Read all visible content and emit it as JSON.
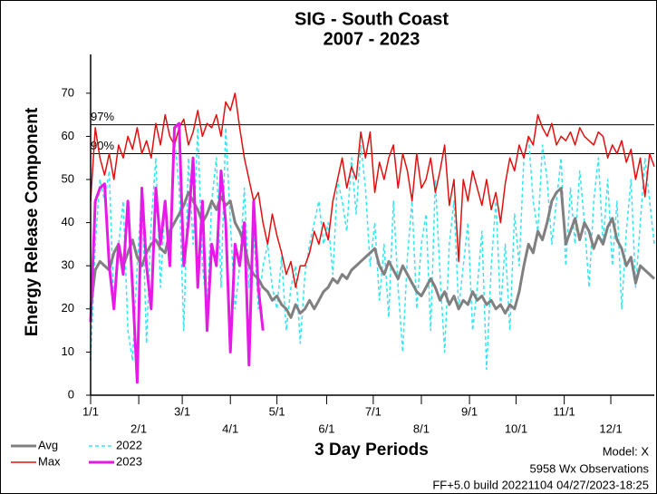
{
  "chart_data": {
    "type": "line",
    "title": "SIG - South Coast",
    "subtitle": "2007 - 2023",
    "y_label": "Energy Release Component",
    "x_label": "3 Day Periods",
    "notes": [
      "Model: X",
      "5958 Wx Observations",
      "FF+5.0 build 20221104 04/27/2023-18:25"
    ],
    "xlim": [
      0,
      121
    ],
    "ylim": [
      0,
      79
    ],
    "yticks": [
      0,
      10,
      20,
      30,
      40,
      50,
      60,
      70
    ],
    "xticks": [
      {
        "value": 0,
        "label": "1/1"
      },
      {
        "value": 10.33,
        "label": "2/1"
      },
      {
        "value": 19.67,
        "label": "3/1"
      },
      {
        "value": 30,
        "label": "4/1"
      },
      {
        "value": 40,
        "label": "5/1"
      },
      {
        "value": 50.67,
        "label": "6/1"
      },
      {
        "value": 60.67,
        "label": "7/1"
      },
      {
        "value": 71,
        "label": "8/1"
      },
      {
        "value": 81.33,
        "label": "9/1"
      },
      {
        "value": 91.33,
        "label": "10/1"
      },
      {
        "value": 101.67,
        "label": "11/1"
      },
      {
        "value": 111.67,
        "label": "12/1"
      }
    ],
    "reference_lines": [
      {
        "value": 62.7,
        "label": "97%"
      },
      {
        "value": 56,
        "label": "90%"
      }
    ],
    "x": [
      0,
      1,
      2,
      3,
      4,
      5,
      6,
      7,
      8,
      9,
      10,
      11,
      12,
      13,
      14,
      15,
      16,
      17,
      18,
      19,
      20,
      21,
      22,
      23,
      24,
      25,
      26,
      27,
      28,
      29,
      30,
      31,
      32,
      33,
      34,
      35,
      36,
      37,
      38,
      39,
      40,
      41,
      42,
      43,
      44,
      45,
      46,
      47,
      48,
      49,
      50,
      51,
      52,
      53,
      54,
      55,
      56,
      57,
      58,
      59,
      60,
      61,
      62,
      63,
      64,
      65,
      66,
      67,
      68,
      69,
      70,
      71,
      72,
      73,
      74,
      75,
      76,
      77,
      78,
      79,
      80,
      81,
      82,
      83,
      84,
      85,
      86,
      87,
      88,
      89,
      90,
      91,
      92,
      93,
      94,
      95,
      96,
      97,
      98,
      99,
      100,
      101,
      102,
      103,
      104,
      105,
      106,
      107,
      108,
      109,
      110,
      111,
      112,
      113,
      114,
      115,
      116,
      117,
      118,
      119,
      120,
      121
    ],
    "series": [
      {
        "name": "2022",
        "color": "#33e6f0",
        "style": "dashed",
        "width": 1.5,
        "values": [
          8,
          35,
          50,
          45,
          52,
          20,
          35,
          45,
          15,
          8,
          30,
          48,
          12,
          40,
          55,
          25,
          45,
          35,
          60,
          48,
          15,
          55,
          35,
          62,
          30,
          20,
          45,
          55,
          25,
          62,
          40,
          20,
          30,
          48,
          25,
          38,
          20,
          30,
          35,
          25,
          20,
          32,
          15,
          25,
          30,
          12,
          28,
          35,
          40,
          45,
          35,
          40,
          28,
          50,
          45,
          38,
          55,
          42,
          58,
          48,
          30,
          40,
          22,
          35,
          18,
          45,
          25,
          10,
          32,
          45,
          20,
          35,
          42,
          15,
          50,
          28,
          10,
          35,
          45,
          20,
          30,
          40,
          15,
          25,
          38,
          6,
          30,
          45,
          20,
          35,
          15,
          42,
          30,
          55,
          60,
          45,
          38,
          58,
          50,
          35,
          45,
          55,
          30,
          48,
          35,
          52,
          40,
          25,
          45,
          55,
          35,
          50,
          30,
          45,
          20,
          38,
          50,
          25,
          40,
          55,
          45,
          35
        ]
      },
      {
        "name": "Avg",
        "color": "#808080",
        "style": "solid",
        "width": 3,
        "values": [
          20,
          29,
          31,
          30,
          29,
          33,
          35,
          30,
          33,
          36,
          32,
          30,
          33,
          35,
          36,
          34,
          33,
          38,
          40,
          42,
          44,
          47,
          45,
          43,
          40,
          42,
          45,
          43,
          46,
          44,
          45,
          40,
          38,
          35,
          30,
          28,
          27,
          25,
          24,
          22,
          23,
          21,
          20,
          18,
          21,
          19,
          20,
          22,
          20,
          22,
          24,
          25,
          27,
          26,
          28,
          27,
          29,
          30,
          31,
          32,
          33,
          34,
          30,
          28,
          31,
          29,
          27,
          30,
          28,
          26,
          24,
          23,
          25,
          27,
          25,
          22,
          24,
          21,
          23,
          20,
          22,
          21,
          24,
          22,
          23,
          21,
          22,
          20,
          21,
          19,
          21,
          20,
          24,
          30,
          35,
          33,
          38,
          36,
          40,
          45,
          47,
          48,
          35,
          38,
          41,
          36,
          40,
          38,
          34,
          37,
          35,
          39,
          41,
          36,
          34,
          30,
          32,
          26,
          30,
          29,
          28,
          27
        ]
      },
      {
        "name": "Max",
        "color": "#e01010",
        "style": "solid",
        "width": 1.5,
        "values": [
          45,
          62,
          55,
          51,
          56,
          50,
          58,
          55,
          60,
          57,
          62,
          56,
          59,
          55,
          63,
          58,
          65,
          60,
          58,
          62,
          64,
          58,
          61,
          66,
          60,
          63,
          62,
          65,
          60,
          68,
          66,
          70,
          62,
          55,
          50,
          45,
          47,
          40,
          35,
          42,
          37,
          33,
          28,
          31,
          25,
          30,
          30,
          33,
          38,
          35,
          40,
          36,
          45,
          50,
          55,
          48,
          53,
          50,
          61,
          55,
          61,
          47,
          54,
          50,
          55,
          58,
          48,
          56,
          52,
          45,
          56,
          48,
          50,
          55,
          47,
          52,
          58,
          44,
          50,
          31,
          50,
          45,
          52,
          48,
          44,
          50,
          43,
          47,
          40,
          49,
          55,
          52,
          58,
          55,
          60,
          58,
          65,
          62,
          60,
          63,
          58,
          60,
          59,
          61,
          58,
          62,
          60,
          59,
          58,
          61,
          60,
          55,
          58,
          56,
          59,
          54,
          57,
          50,
          55,
          46,
          56,
          53
        ]
      },
      {
        "name": "2023",
        "color": "#e619e6",
        "style": "solid",
        "width": 3,
        "values": [
          17,
          45,
          48,
          49,
          30,
          20,
          35,
          28,
          45,
          25,
          3,
          48,
          30,
          20,
          48,
          35,
          45,
          30,
          62,
          63,
          30,
          40,
          55,
          25,
          45,
          15,
          35,
          30,
          52,
          40,
          10,
          35,
          30,
          40,
          7,
          45,
          25,
          15,
          null,
          null,
          null,
          null,
          null,
          null,
          null,
          null,
          null,
          null,
          null,
          null,
          null,
          null,
          null,
          null,
          null,
          null,
          null,
          null,
          null,
          null,
          null,
          null,
          null,
          null,
          null,
          null,
          null,
          null,
          null,
          null,
          null,
          null,
          null,
          null,
          null,
          null,
          null,
          null,
          null,
          null,
          null,
          null,
          null,
          null,
          null,
          null,
          null,
          null,
          null,
          null,
          null,
          null,
          null,
          null,
          null,
          null,
          null,
          null,
          null,
          null,
          null,
          null,
          null,
          null,
          null,
          null,
          null,
          null,
          null,
          null,
          null,
          null,
          null,
          null,
          null,
          null,
          null,
          null,
          null,
          null,
          null,
          null
        ]
      }
    ]
  }
}
